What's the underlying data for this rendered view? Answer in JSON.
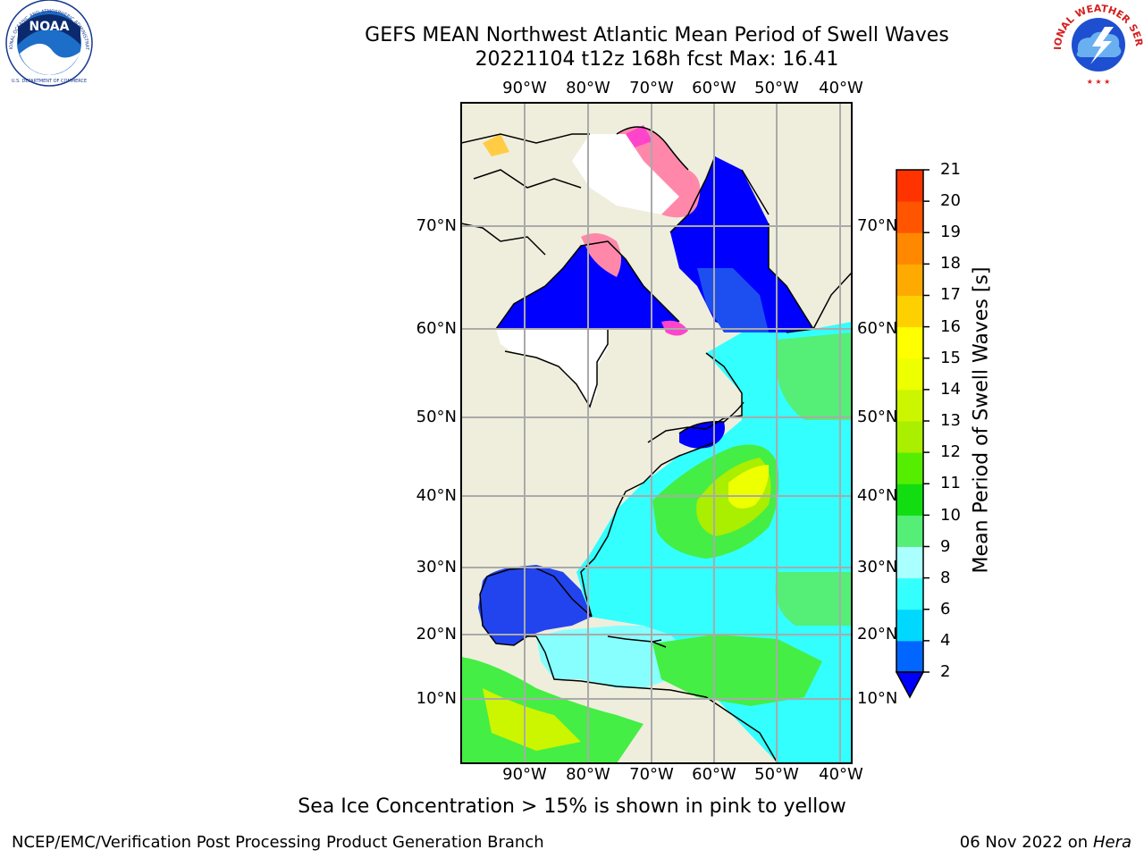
{
  "title": {
    "line1": "GEFS MEAN Northwest Atlantic Mean Period of Swell Waves",
    "line2": "20221104 t12z 168h fcst   Max: 16.41"
  },
  "map": {
    "lon_labels": [
      "90°W",
      "80°W",
      "70°W",
      "60°W",
      "50°W",
      "40°W"
    ],
    "lat_labels": [
      "70°N",
      "60°N",
      "50°N",
      "40°N",
      "30°N",
      "20°N",
      "10°N"
    ],
    "land_color": "#efeedd",
    "ice_colors": [
      "#ff44cc",
      "#ff88aa",
      "#ffcc44"
    ]
  },
  "colorbar": {
    "title": "Mean Period of Swell Waves [s]",
    "ticks": [
      "2",
      "4",
      "6",
      "8",
      "9",
      "10",
      "11",
      "12",
      "13",
      "14",
      "15",
      "16",
      "17",
      "18",
      "19",
      "20",
      "21"
    ],
    "colors": [
      "#0066ff",
      "#00d8ff",
      "#33ffff",
      "#aaffff",
      "#55ee77",
      "#11dd11",
      "#55ee00",
      "#aaee00",
      "#ccf500",
      "#eeff00",
      "#ffff00",
      "#ffd000",
      "#ffaa00",
      "#ff8800",
      "#ff5500",
      "#ff3300"
    ],
    "extend_color": "#0000ff"
  },
  "note": "Sea Ice Concentration > 15% is shown in pink to yellow",
  "footer": {
    "left": "NCEP/EMC/Verification Post Processing Product Generation Branch",
    "date": "06 Nov 2022 on",
    "machine": "Hera"
  },
  "logos": {
    "noaa_text": "NOAA",
    "noaa_ring": "NATIONAL OCEANIC AND ATMOSPHERIC ADMINISTRATION",
    "noaa_bottom": "U.S. DEPARTMENT OF COMMERCE",
    "nws_ring": "NATIONAL WEATHER SERVICE"
  }
}
